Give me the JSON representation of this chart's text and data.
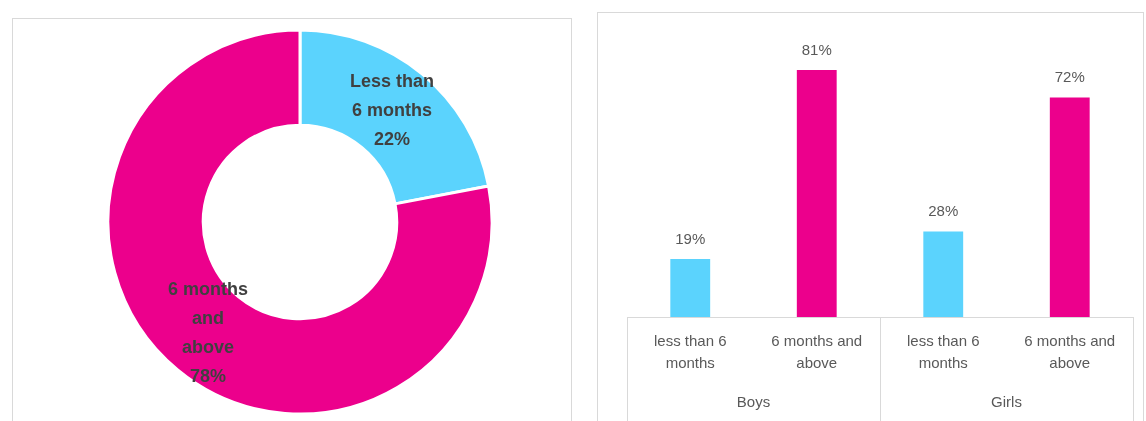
{
  "chart_data": [
    {
      "type": "donut",
      "categories": [
        "Less than 6 months",
        "6 months and above"
      ],
      "values": [
        22,
        78
      ],
      "colors": [
        "#5bd3fd",
        "#ec008c"
      ],
      "value_labels": [
        "22%",
        "78%"
      ]
    },
    {
      "type": "bar",
      "categories": [
        "Boys",
        "Girls"
      ],
      "ylim": [
        0,
        100
      ],
      "tick_labels": "x",
      "series": [
        {
          "name": "less than 6 months",
          "color": "#5bd3fd",
          "values": [
            19,
            28
          ],
          "value_labels": [
            "19%",
            "28%"
          ]
        },
        {
          "name": "6 months and above",
          "color": "#ec008c",
          "values": [
            81,
            72
          ],
          "value_labels": [
            "81%",
            "72%"
          ]
        }
      ]
    }
  ]
}
